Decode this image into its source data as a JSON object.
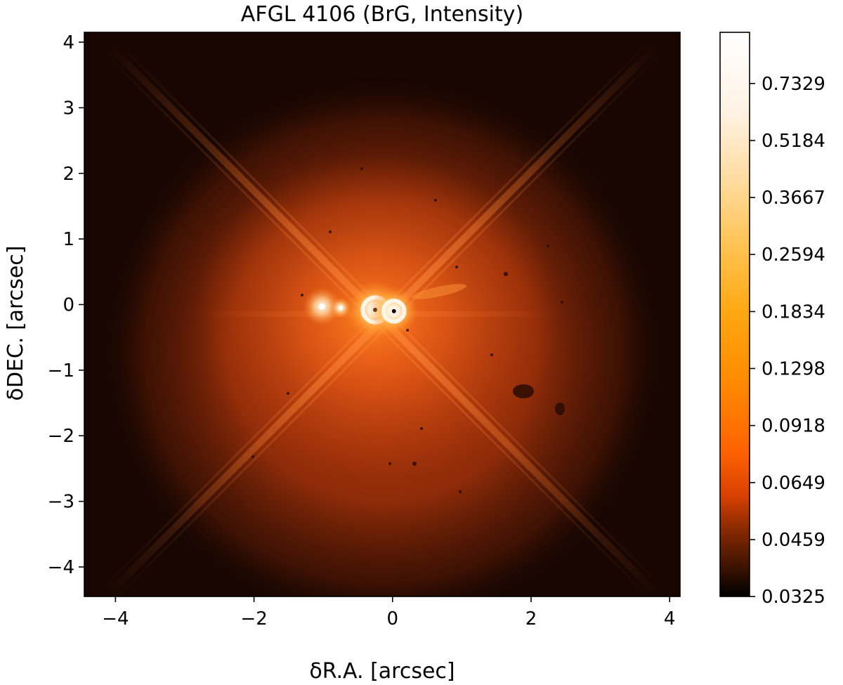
{
  "chart_data": {
    "type": "heatmap",
    "title": "AFGL 4106 (BrG, Intensity)",
    "xlabel": "δR.A. [arcsec]",
    "ylabel": "δDEC. [arcsec]",
    "xlim": [
      -4.45,
      4.15
    ],
    "ylim": [
      -4.45,
      4.15
    ],
    "xticks": [
      -4,
      -2,
      0,
      2,
      4
    ],
    "yticks": [
      4,
      3,
      2,
      1,
      0,
      -1,
      -2,
      -3,
      -4
    ],
    "tick_labels_x": [
      "−4",
      "−2",
      "0",
      "2",
      "4"
    ],
    "tick_labels_y": [
      "4",
      "3",
      "2",
      "1",
      "0",
      "−1",
      "−2",
      "−3",
      "−4"
    ],
    "colormap": "gist_heat",
    "colorbar": {
      "scale": "log",
      "vmin": 0.0325,
      "vmax": 1.0,
      "ticks": [
        0.7329,
        0.5184,
        0.3667,
        0.2594,
        0.1834,
        0.1298,
        0.0918,
        0.0649,
        0.0459,
        0.0325
      ],
      "tick_labels": [
        "0.7329",
        "0.5184",
        "0.3667",
        "0.2594",
        "0.1834",
        "0.1298",
        "0.0918",
        "0.0649",
        "0.0459",
        "0.0325"
      ]
    },
    "sources": [
      {
        "x": -0.25,
        "y": -0.08,
        "level": 1.0
      },
      {
        "x": 0.02,
        "y": -0.1,
        "level": 0.8
      },
      {
        "x": -1.02,
        "y": -0.03,
        "level": 0.55
      },
      {
        "x": -0.75,
        "y": -0.05,
        "level": 0.2
      }
    ],
    "grid": false
  }
}
